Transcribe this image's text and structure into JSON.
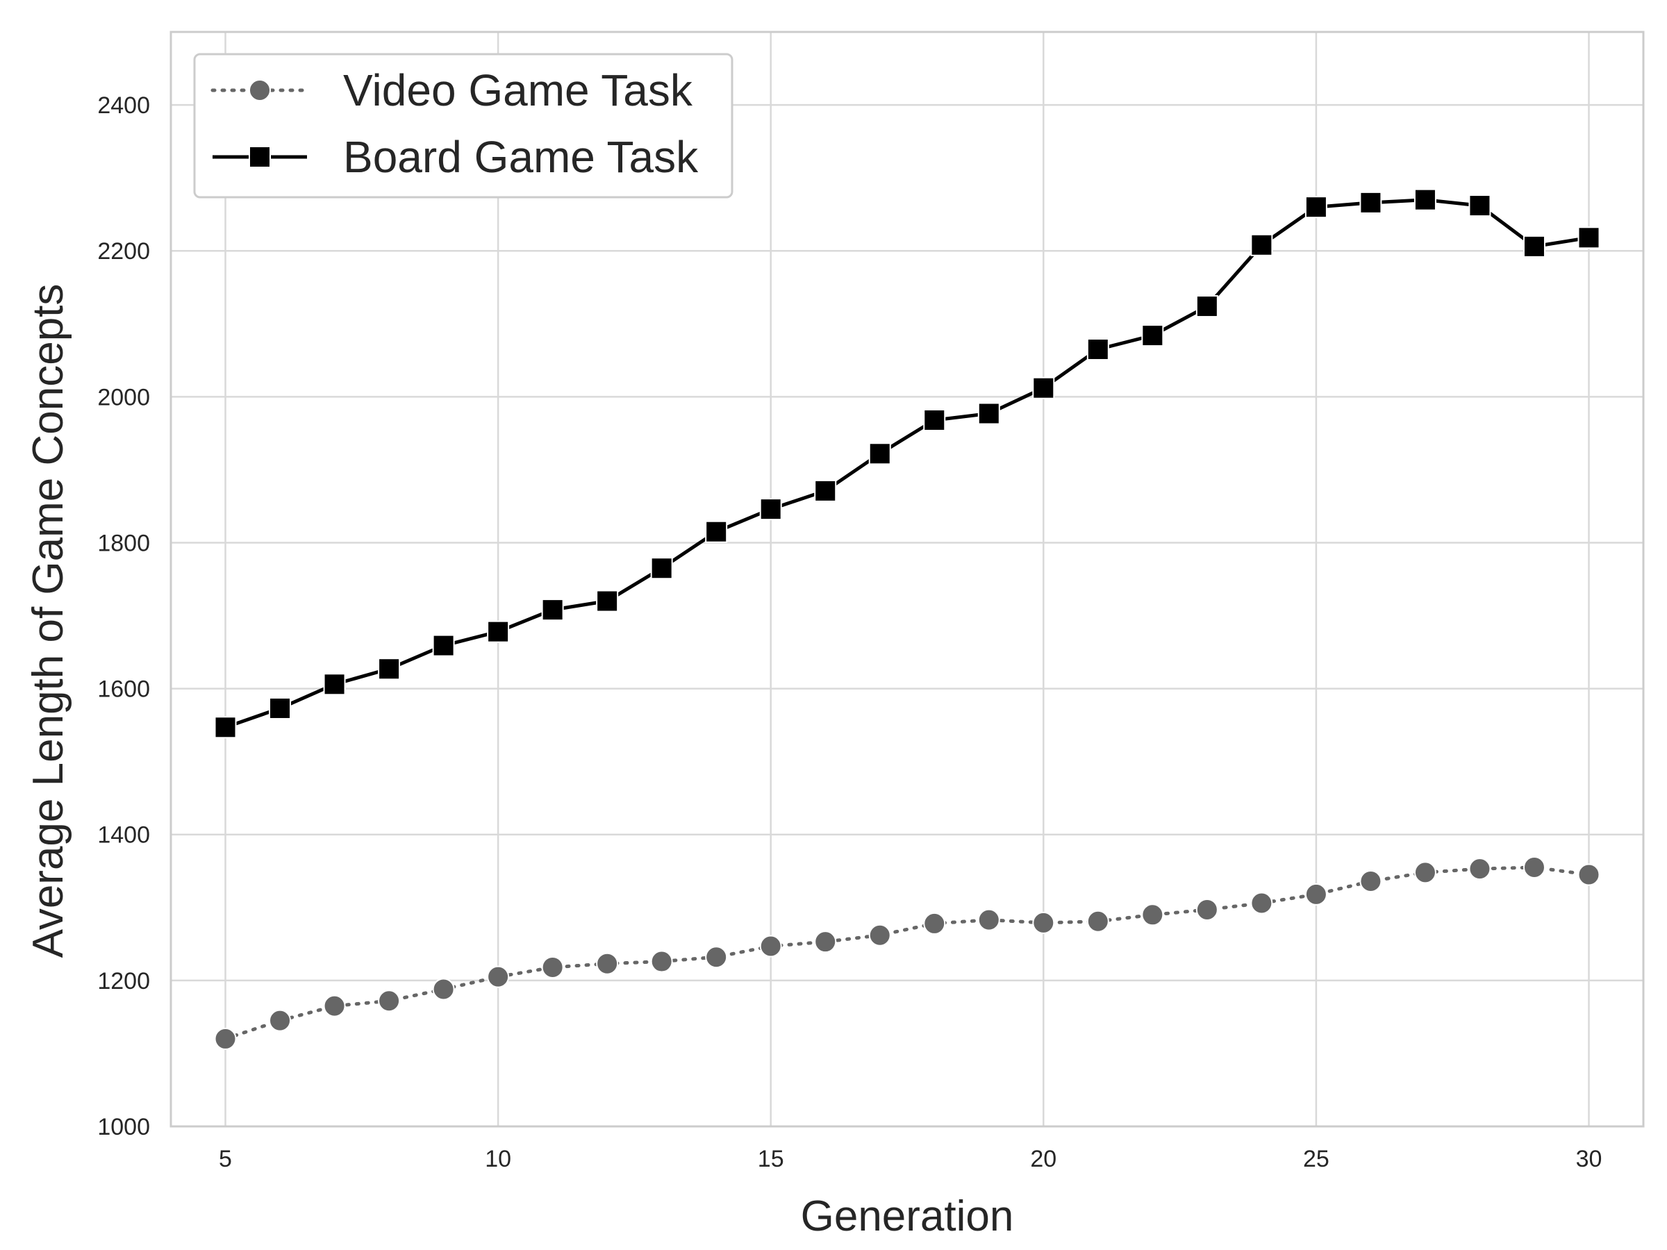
{
  "chart_data": {
    "type": "line",
    "title": "",
    "xlabel": "Generation",
    "ylabel": "Average Length of Game Concepts",
    "xlim": [
      4,
      31
    ],
    "ylim": [
      1000,
      2500
    ],
    "xticks": [
      5,
      10,
      15,
      20,
      25,
      30
    ],
    "yticks": [
      1000,
      1200,
      1400,
      1600,
      1800,
      2000,
      2200,
      2400
    ],
    "grid": true,
    "legend_position": "top-left",
    "x": [
      5,
      6,
      7,
      8,
      9,
      10,
      11,
      12,
      13,
      14,
      15,
      16,
      17,
      18,
      19,
      20,
      21,
      22,
      23,
      24,
      25,
      26,
      27,
      28,
      29,
      30
    ],
    "series": [
      {
        "name": "Video Game Task",
        "color": "#666666",
        "line_style": "dotted",
        "marker": "circle",
        "values": [
          1120,
          1145,
          1165,
          1172,
          1188,
          1205,
          1218,
          1223,
          1226,
          1232,
          1247,
          1253,
          1262,
          1278,
          1283,
          1279,
          1281,
          1290,
          1297,
          1306,
          1318,
          1336,
          1348,
          1353,
          1355,
          1345
        ]
      },
      {
        "name": "Board Game Task",
        "color": "#000000",
        "line_style": "solid",
        "marker": "square",
        "values": [
          1547,
          1573,
          1606,
          1627,
          1659,
          1678,
          1708,
          1720,
          1765,
          1815,
          1846,
          1871,
          1922,
          1968,
          1977,
          2012,
          2065,
          2084,
          2124,
          2208,
          2260,
          2266,
          2270,
          2262,
          2206,
          2218
        ]
      }
    ]
  }
}
